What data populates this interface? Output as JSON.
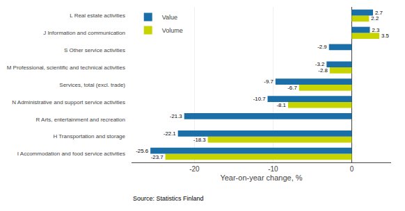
{
  "chart_data": {
    "type": "bar",
    "orientation": "horizontal",
    "categories": [
      "I Accommodation and food service activities",
      "H Transportation and storage",
      "R Arts, entertainment and recreation",
      "N Administrative and support service activities",
      "Services, total (excl. trade)",
      "M Professional, scientific and technical activities",
      "S Other service activities",
      "J Information and communication",
      "L Real estate activities"
    ],
    "series": [
      {
        "name": "Value",
        "color": "#1a6fa8",
        "values": [
          -25.6,
          -22.1,
          -21.3,
          -10.7,
          -9.7,
          -3.2,
          -2.9,
          2.3,
          2.7
        ]
      },
      {
        "name": "Volume",
        "color": "#c8d400",
        "values": [
          -23.7,
          -18.3,
          null,
          -8.1,
          -6.7,
          -2.8,
          null,
          3.5,
          2.2
        ]
      }
    ],
    "xlabel": "Year-on-year change, %",
    "xlim": [
      -28,
      5
    ],
    "xticks": [
      -20,
      -10,
      0
    ],
    "grid": true,
    "legend": "upper left",
    "data_labels": true,
    "annotations": [
      "Source: Statistics Finland"
    ]
  }
}
